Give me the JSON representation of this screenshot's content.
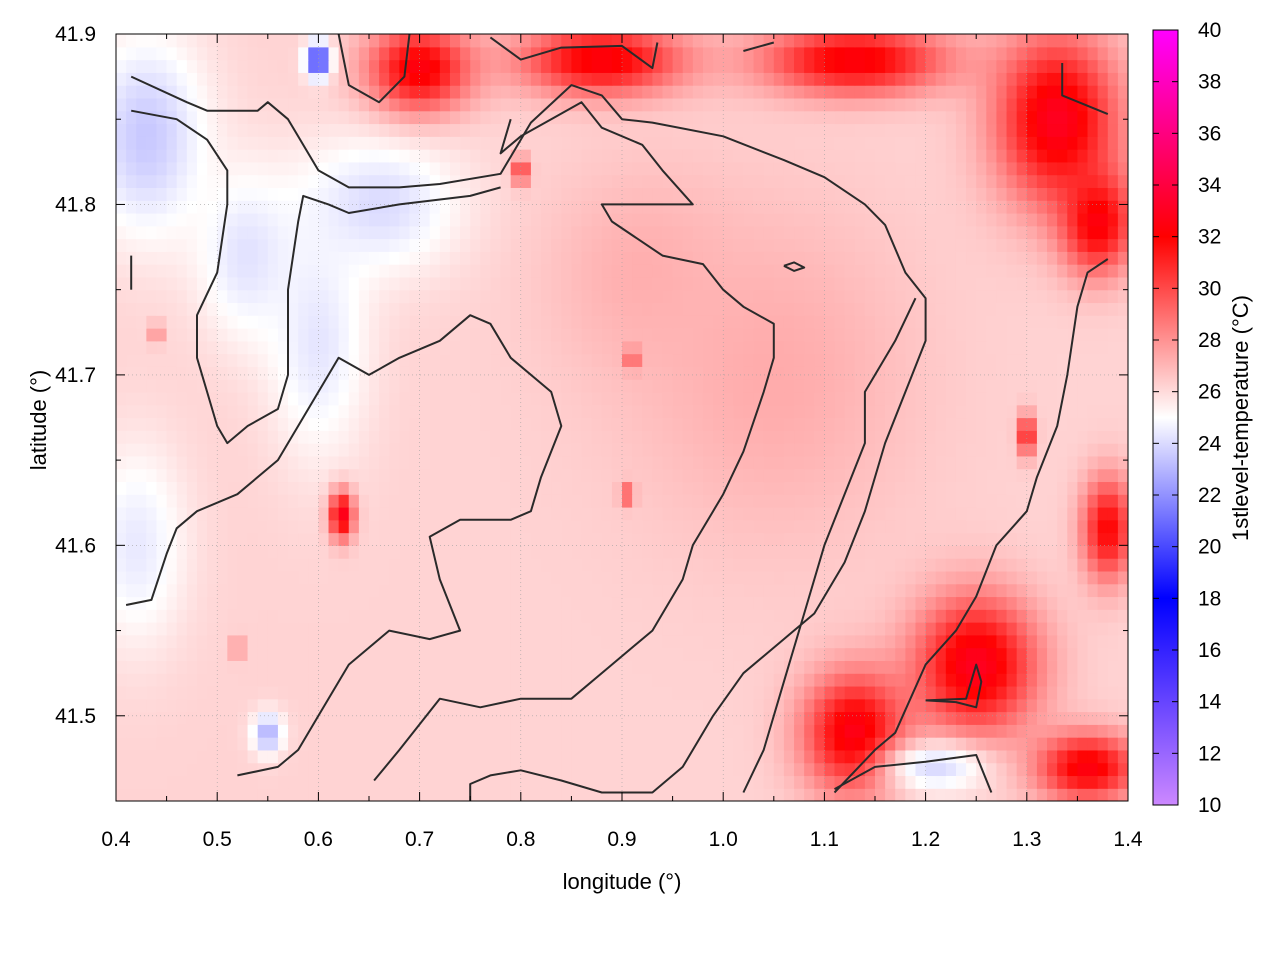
{
  "chart_data": {
    "type": "heatmap",
    "xlabel": "longitude (°)",
    "ylabel": "latitude (°)",
    "colorbar_label": "1stlevel-temperature (°C)",
    "xlim": [
      0.4,
      1.4
    ],
    "ylim": [
      41.45,
      41.9
    ],
    "xticks": [
      0.4,
      0.5,
      0.6,
      0.7,
      0.8,
      0.9,
      1.0,
      1.1,
      1.2,
      1.3,
      1.4
    ],
    "xtick_labels": [
      "0.4",
      "0.5",
      "0.6",
      "0.7",
      "0.8",
      "0.9",
      "1.0",
      "1.1",
      "1.2",
      "1.3",
      "1.4"
    ],
    "yticks": [
      41.5,
      41.6,
      41.7,
      41.8,
      41.9
    ],
    "ytick_labels": [
      "41.5",
      "41.6",
      "41.7",
      "41.8",
      "41.9"
    ],
    "colorbar_range": [
      10,
      40
    ],
    "colorbar_ticks": [
      10,
      12,
      14,
      16,
      18,
      20,
      22,
      24,
      26,
      28,
      30,
      32,
      34,
      36,
      38,
      40
    ],
    "colorbar_tick_labels": [
      "10",
      "12",
      "14",
      "16",
      "18",
      "20",
      "22",
      "24",
      "26",
      "28",
      "30",
      "32",
      "34",
      "36",
      "38",
      "40"
    ],
    "colorscale": [
      {
        "value": 10,
        "color": "#cc88ff"
      },
      {
        "value": 18,
        "color": "#0000ff"
      },
      {
        "value": 25,
        "color": "#ffffff"
      },
      {
        "value": 32,
        "color": "#ff0000"
      },
      {
        "value": 40,
        "color": "#ff00ff"
      }
    ],
    "grid": true,
    "background_value": 26.2,
    "features": [
      {
        "lon": 0.43,
        "lat": 41.84,
        "rx": 0.06,
        "ry": 0.06,
        "value": 23.5
      },
      {
        "lon": 0.53,
        "lat": 41.77,
        "rx": 0.05,
        "ry": 0.05,
        "value": 24.2
      },
      {
        "lon": 0.66,
        "lat": 41.8,
        "rx": 0.08,
        "ry": 0.04,
        "value": 24.0
      },
      {
        "lon": 0.6,
        "lat": 41.72,
        "rx": 0.05,
        "ry": 0.07,
        "value": 24.3
      },
      {
        "lon": 0.42,
        "lat": 41.6,
        "rx": 0.05,
        "ry": 0.06,
        "value": 24.4
      },
      {
        "lon": 0.6,
        "lat": 41.885,
        "rx": 0.012,
        "ry": 0.01,
        "value": 19.0
      },
      {
        "lon": 0.55,
        "lat": 41.49,
        "rx": 0.015,
        "ry": 0.012,
        "value": 22.8
      },
      {
        "lon": 1.05,
        "lat": 41.7,
        "rx": 0.14,
        "ry": 0.1,
        "value": 27.3
      },
      {
        "lon": 0.92,
        "lat": 41.76,
        "rx": 0.09,
        "ry": 0.06,
        "value": 27.2
      },
      {
        "lon": 0.7,
        "lat": 41.88,
        "rx": 0.05,
        "ry": 0.025,
        "value": 32.5
      },
      {
        "lon": 0.88,
        "lat": 41.885,
        "rx": 0.08,
        "ry": 0.02,
        "value": 32.5
      },
      {
        "lon": 1.13,
        "lat": 41.885,
        "rx": 0.09,
        "ry": 0.02,
        "value": 32.5
      },
      {
        "lon": 1.33,
        "lat": 41.85,
        "rx": 0.06,
        "ry": 0.05,
        "value": 33.0
      },
      {
        "lon": 1.37,
        "lat": 41.79,
        "rx": 0.035,
        "ry": 0.03,
        "value": 32.5
      },
      {
        "lon": 1.25,
        "lat": 41.53,
        "rx": 0.06,
        "ry": 0.04,
        "value": 33.0
      },
      {
        "lon": 1.13,
        "lat": 41.49,
        "rx": 0.05,
        "ry": 0.035,
        "value": 32.8
      },
      {
        "lon": 1.36,
        "lat": 41.47,
        "rx": 0.05,
        "ry": 0.02,
        "value": 32.5
      },
      {
        "lon": 1.38,
        "lat": 41.61,
        "rx": 0.025,
        "ry": 0.03,
        "value": 32.0
      },
      {
        "lon": 1.21,
        "lat": 41.47,
        "rx": 0.05,
        "ry": 0.015,
        "value": 24.0
      },
      {
        "lon": 0.623,
        "lat": 41.618,
        "rx": 0.012,
        "ry": 0.014,
        "value": 33.0
      },
      {
        "lon": 0.905,
        "lat": 41.63,
        "rx": 0.007,
        "ry": 0.006,
        "value": 30.0
      },
      {
        "lon": 0.91,
        "lat": 41.71,
        "rx": 0.007,
        "ry": 0.006,
        "value": 30.0
      },
      {
        "lon": 1.3,
        "lat": 41.665,
        "rx": 0.008,
        "ry": 0.012,
        "value": 32.0
      },
      {
        "lon": 0.44,
        "lat": 41.725,
        "rx": 0.005,
        "ry": 0.006,
        "value": 30.0
      },
      {
        "lon": 0.52,
        "lat": 41.54,
        "rx": 0.005,
        "ry": 0.006,
        "value": 30.0
      },
      {
        "lon": 0.8,
        "lat": 41.82,
        "rx": 0.008,
        "ry": 0.008,
        "value": 31.0
      }
    ],
    "contours": [
      [
        [
          0.415,
          41.875
        ],
        [
          0.47,
          41.86
        ],
        [
          0.49,
          41.855
        ],
        [
          0.54,
          41.855
        ],
        [
          0.55,
          41.86
        ],
        [
          0.57,
          41.85
        ],
        [
          0.6,
          41.82
        ],
        [
          0.63,
          41.81
        ],
        [
          0.68,
          41.81
        ],
        [
          0.72,
          41.812
        ],
        [
          0.78,
          41.818
        ],
        [
          0.79,
          41.828
        ],
        [
          0.81,
          41.848
        ],
        [
          0.85,
          41.87
        ],
        [
          0.88,
          41.864
        ],
        [
          0.9,
          41.85
        ],
        [
          0.93,
          41.848
        ],
        [
          1.0,
          41.84
        ],
        [
          1.06,
          41.826
        ],
        [
          1.1,
          41.816
        ],
        [
          1.14,
          41.8
        ],
        [
          1.16,
          41.788
        ],
        [
          1.18,
          41.76
        ],
        [
          1.2,
          41.745
        ],
        [
          1.2,
          41.72
        ],
        [
          1.18,
          41.69
        ],
        [
          1.16,
          41.66
        ],
        [
          1.14,
          41.62
        ],
        [
          1.12,
          41.59
        ],
        [
          1.09,
          41.56
        ],
        [
          1.06,
          41.545
        ],
        [
          1.02,
          41.525
        ],
        [
          0.99,
          41.5
        ],
        [
          0.96,
          41.47
        ],
        [
          0.93,
          41.455
        ],
        [
          0.88,
          41.455
        ],
        [
          0.84,
          41.462
        ],
        [
          0.8,
          41.468
        ],
        [
          0.77,
          41.465
        ],
        [
          0.75,
          41.46
        ],
        [
          0.75,
          41.45
        ]
      ],
      [
        [
          0.415,
          41.855
        ],
        [
          0.46,
          41.85
        ],
        [
          0.49,
          41.838
        ],
        [
          0.51,
          41.82
        ],
        [
          0.51,
          41.8
        ],
        [
          0.5,
          41.76
        ],
        [
          0.48,
          41.735
        ],
        [
          0.48,
          41.71
        ],
        [
          0.49,
          41.69
        ],
        [
          0.5,
          41.67
        ],
        [
          0.51,
          41.66
        ],
        [
          0.53,
          41.67
        ],
        [
          0.56,
          41.68
        ],
        [
          0.57,
          41.7
        ],
        [
          0.57,
          41.75
        ],
        [
          0.58,
          41.79
        ],
        [
          0.585,
          41.805
        ],
        [
          0.61,
          41.8
        ],
        [
          0.63,
          41.795
        ],
        [
          0.68,
          41.8
        ],
        [
          0.75,
          41.805
        ],
        [
          0.78,
          41.81
        ]
      ],
      [
        [
          0.41,
          41.565
        ],
        [
          0.435,
          41.568
        ],
        [
          0.45,
          41.595
        ],
        [
          0.46,
          41.61
        ],
        [
          0.48,
          41.62
        ],
        [
          0.52,
          41.63
        ],
        [
          0.56,
          41.65
        ],
        [
          0.6,
          41.69
        ],
        [
          0.62,
          41.71
        ],
        [
          0.65,
          41.7
        ],
        [
          0.68,
          41.71
        ],
        [
          0.72,
          41.72
        ],
        [
          0.75,
          41.735
        ],
        [
          0.77,
          41.73
        ],
        [
          0.79,
          41.71
        ],
        [
          0.83,
          41.69
        ],
        [
          0.84,
          41.67
        ],
        [
          0.82,
          41.64
        ],
        [
          0.81,
          41.62
        ],
        [
          0.79,
          41.615
        ],
        [
          0.74,
          41.615
        ],
        [
          0.71,
          41.605
        ],
        [
          0.72,
          41.58
        ],
        [
          0.74,
          41.55
        ],
        [
          0.71,
          41.545
        ],
        [
          0.67,
          41.55
        ],
        [
          0.63,
          41.53
        ],
        [
          0.61,
          41.51
        ],
        [
          0.6,
          41.5
        ],
        [
          0.58,
          41.48
        ],
        [
          0.56,
          41.47
        ],
        [
          0.52,
          41.465
        ]
      ],
      [
        [
          0.655,
          41.462
        ],
        [
          0.68,
          41.48
        ],
        [
          0.72,
          41.51
        ],
        [
          0.76,
          41.505
        ],
        [
          0.8,
          41.51
        ],
        [
          0.85,
          41.51
        ],
        [
          0.89,
          41.53
        ],
        [
          0.93,
          41.55
        ],
        [
          0.96,
          41.58
        ],
        [
          0.97,
          41.6
        ],
        [
          0.99,
          41.62
        ],
        [
          1.0,
          41.63
        ],
        [
          1.02,
          41.655
        ],
        [
          1.04,
          41.69
        ],
        [
          1.05,
          41.71
        ],
        [
          1.05,
          41.73
        ],
        [
          1.02,
          41.74
        ],
        [
          1.0,
          41.75
        ],
        [
          0.98,
          41.765
        ],
        [
          0.94,
          41.77
        ],
        [
          0.89,
          41.79
        ],
        [
          0.88,
          41.8
        ],
        [
          0.93,
          41.8
        ],
        [
          0.97,
          41.8
        ],
        [
          0.94,
          41.82
        ],
        [
          0.92,
          41.835
        ],
        [
          0.88,
          41.845
        ],
        [
          0.86,
          41.86
        ],
        [
          0.83,
          41.85
        ],
        [
          0.8,
          41.84
        ],
        [
          0.78,
          41.83
        ],
        [
          0.79,
          41.85
        ]
      ],
      [
        [
          1.02,
          41.455
        ],
        [
          1.04,
          41.48
        ],
        [
          1.06,
          41.52
        ],
        [
          1.08,
          41.56
        ],
        [
          1.1,
          41.6
        ],
        [
          1.12,
          41.63
        ],
        [
          1.14,
          41.66
        ],
        [
          1.14,
          41.69
        ],
        [
          1.17,
          41.72
        ],
        [
          1.19,
          41.745
        ]
      ],
      [
        [
          1.11,
          41.455
        ],
        [
          1.15,
          41.48
        ],
        [
          1.17,
          41.49
        ],
        [
          1.2,
          41.53
        ],
        [
          1.23,
          41.55
        ],
        [
          1.25,
          41.57
        ],
        [
          1.27,
          41.6
        ],
        [
          1.3,
          41.62
        ],
        [
          1.31,
          41.64
        ],
        [
          1.33,
          41.67
        ],
        [
          1.34,
          41.7
        ],
        [
          1.35,
          41.74
        ],
        [
          1.36,
          41.76
        ],
        [
          1.38,
          41.768
        ]
      ],
      [
        [
          1.2,
          41.509
        ],
        [
          1.23,
          41.508
        ],
        [
          1.25,
          41.505
        ],
        [
          1.255,
          41.52
        ],
        [
          1.25,
          41.53
        ],
        [
          1.24,
          41.51
        ],
        [
          1.2,
          41.509
        ]
      ],
      [
        [
          1.11,
          41.457
        ],
        [
          1.15,
          41.47
        ],
        [
          1.2,
          41.473
        ],
        [
          1.25,
          41.477
        ],
        [
          1.265,
          41.455
        ]
      ],
      [
        [
          1.335,
          41.883
        ],
        [
          1.335,
          41.864
        ],
        [
          1.38,
          41.853
        ]
      ],
      [
        [
          1.06,
          41.764
        ],
        [
          1.07,
          41.766
        ],
        [
          1.08,
          41.763
        ],
        [
          1.07,
          41.761
        ],
        [
          1.06,
          41.764
        ]
      ],
      [
        [
          0.415,
          41.75
        ],
        [
          0.415,
          41.77
        ]
      ],
      [
        [
          0.62,
          41.9
        ],
        [
          0.63,
          41.87
        ],
        [
          0.66,
          41.86
        ],
        [
          0.685,
          41.875
        ],
        [
          0.69,
          41.9
        ]
      ],
      [
        [
          0.77,
          41.898
        ],
        [
          0.8,
          41.885
        ],
        [
          0.84,
          41.892
        ],
        [
          0.9,
          41.893
        ],
        [
          0.93,
          41.88
        ],
        [
          0.935,
          41.895
        ]
      ],
      [
        [
          1.02,
          41.89
        ],
        [
          1.05,
          41.895
        ]
      ]
    ]
  }
}
